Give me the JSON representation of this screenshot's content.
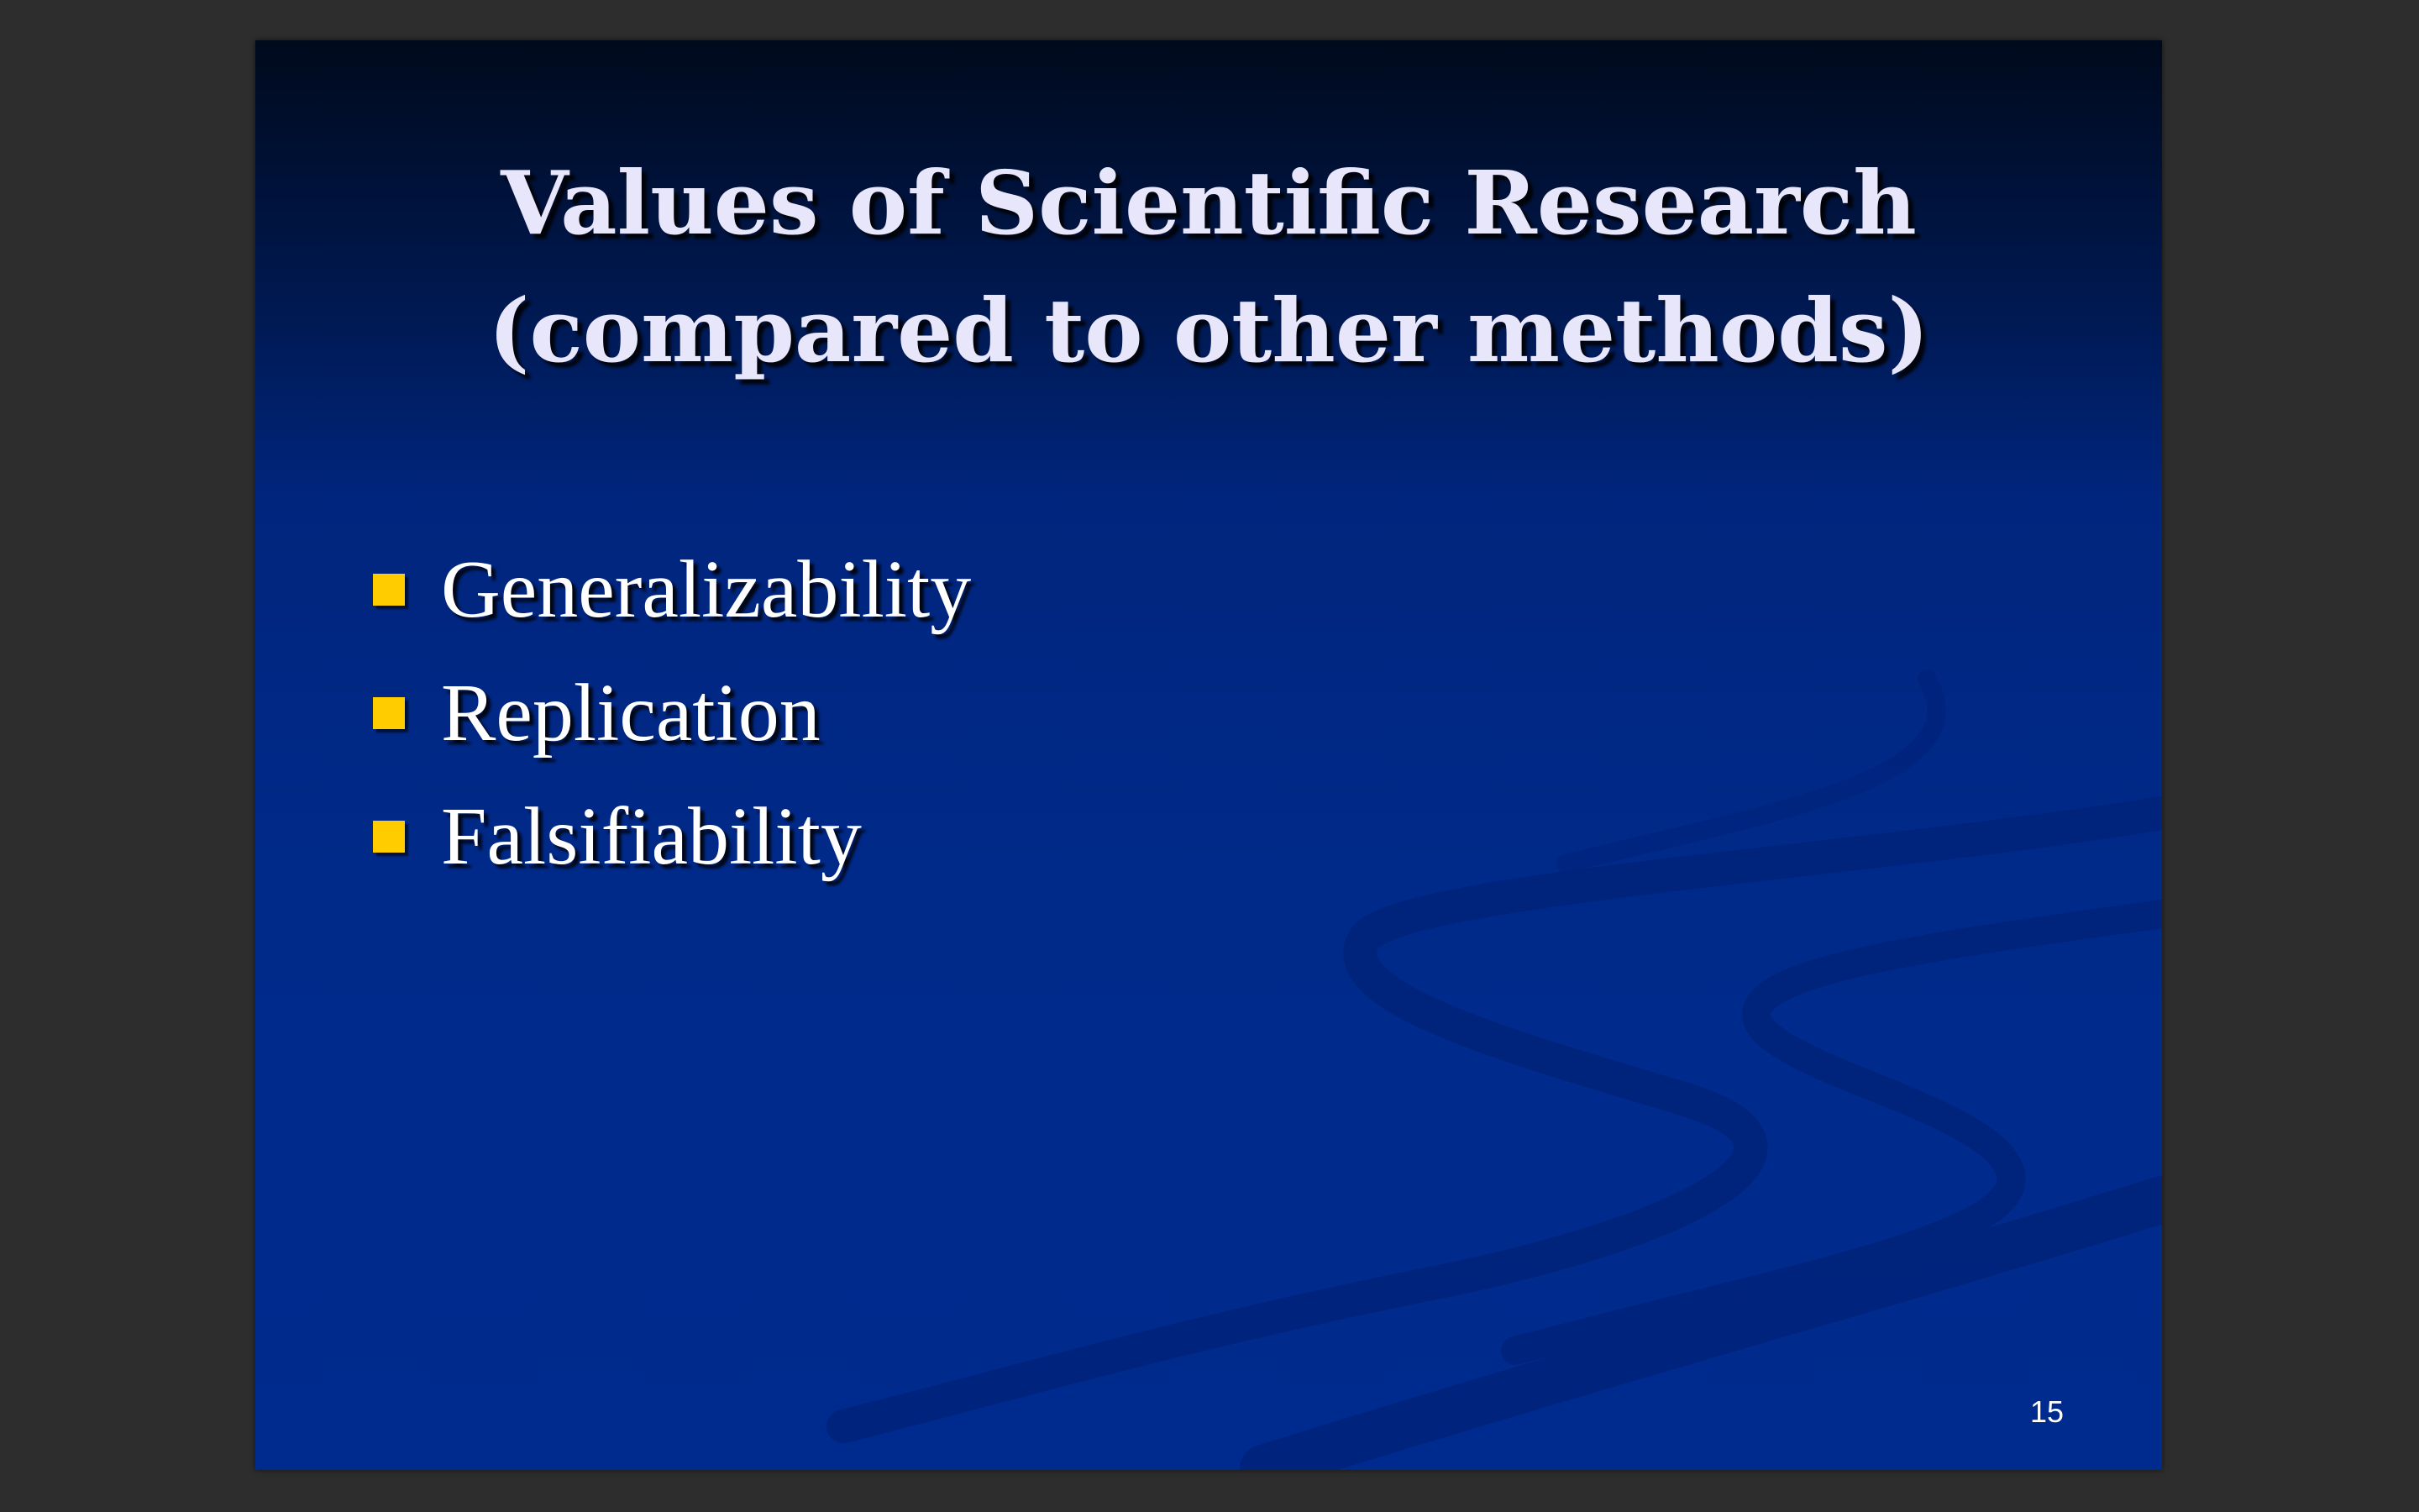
{
  "slide": {
    "title_lines": [
      "Values of Scientific Research",
      "(compared to other methods)"
    ],
    "bullets": [
      "Generalizability",
      "Replication",
      "Falsifiability"
    ],
    "page_number": "15"
  },
  "colors": {
    "app_background": "#2d2d2d",
    "slide_top": "#000a1c",
    "slide_bottom": "#002b8e",
    "title_text": "#e8e6fb",
    "bullet_text": "#ffffff",
    "bullet_marker": "#ffcc00"
  },
  "icons": {
    "bullet_marker": "square-bullet-icon",
    "background_graphic": "swoosh-decoration"
  }
}
